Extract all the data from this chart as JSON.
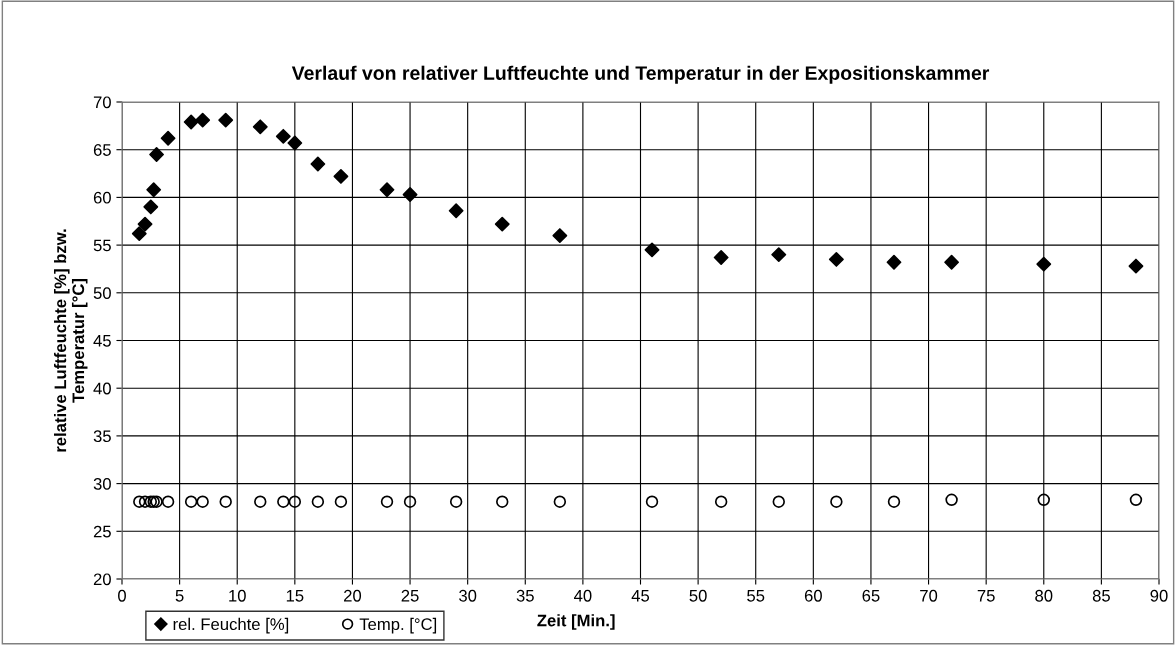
{
  "chart_data": {
    "type": "scatter",
    "title": "Verlauf von relativer Luftfeuchte und Temperatur in der Expositionskammer",
    "xlabel": "Zeit [Min.]",
    "ylabel": "relative Luftfeuchte [%] bzw.\nTemperatur [°C]",
    "x": [
      1.5,
      2,
      2.5,
      2.75,
      3,
      4,
      6,
      7,
      9,
      12,
      14,
      15,
      17,
      19,
      23,
      25,
      29,
      33,
      38,
      46,
      52,
      57,
      62,
      67,
      72,
      80,
      88
    ],
    "series": [
      {
        "name": "rel. Feuchte [%]",
        "color": "#000000",
        "marker": "diamond",
        "values": [
          56.2,
          57.2,
          59,
          60.8,
          64.5,
          66.2,
          67.9,
          68.1,
          68.1,
          67.4,
          66.4,
          65.7,
          63.5,
          62.2,
          60.8,
          60.3,
          58.6,
          57.2,
          56,
          54.5,
          53.7,
          54,
          53.5,
          53.2,
          53.2,
          53,
          52.8
        ]
      },
      {
        "name": "Temp. [°C]",
        "color": "#000000",
        "marker": "circle",
        "values": [
          28.1,
          28.1,
          28.1,
          28.1,
          28.1,
          28.1,
          28.1,
          28.1,
          28.1,
          28.1,
          28.1,
          28.1,
          28.1,
          28.1,
          28.1,
          28.1,
          28.1,
          28.1,
          28.1,
          28.1,
          28.1,
          28.1,
          28.1,
          28.1,
          28.3,
          28.3,
          28.3
        ]
      }
    ],
    "xlim": [
      0,
      90
    ],
    "xticks": [
      0,
      5,
      10,
      15,
      20,
      25,
      30,
      35,
      40,
      45,
      50,
      55,
      60,
      65,
      70,
      75,
      80,
      85,
      90
    ],
    "ylim": [
      20,
      70
    ],
    "yticks": [
      20,
      25,
      30,
      35,
      40,
      45,
      50,
      55,
      60,
      65,
      70
    ],
    "grid": true,
    "legend": "bottom left"
  }
}
